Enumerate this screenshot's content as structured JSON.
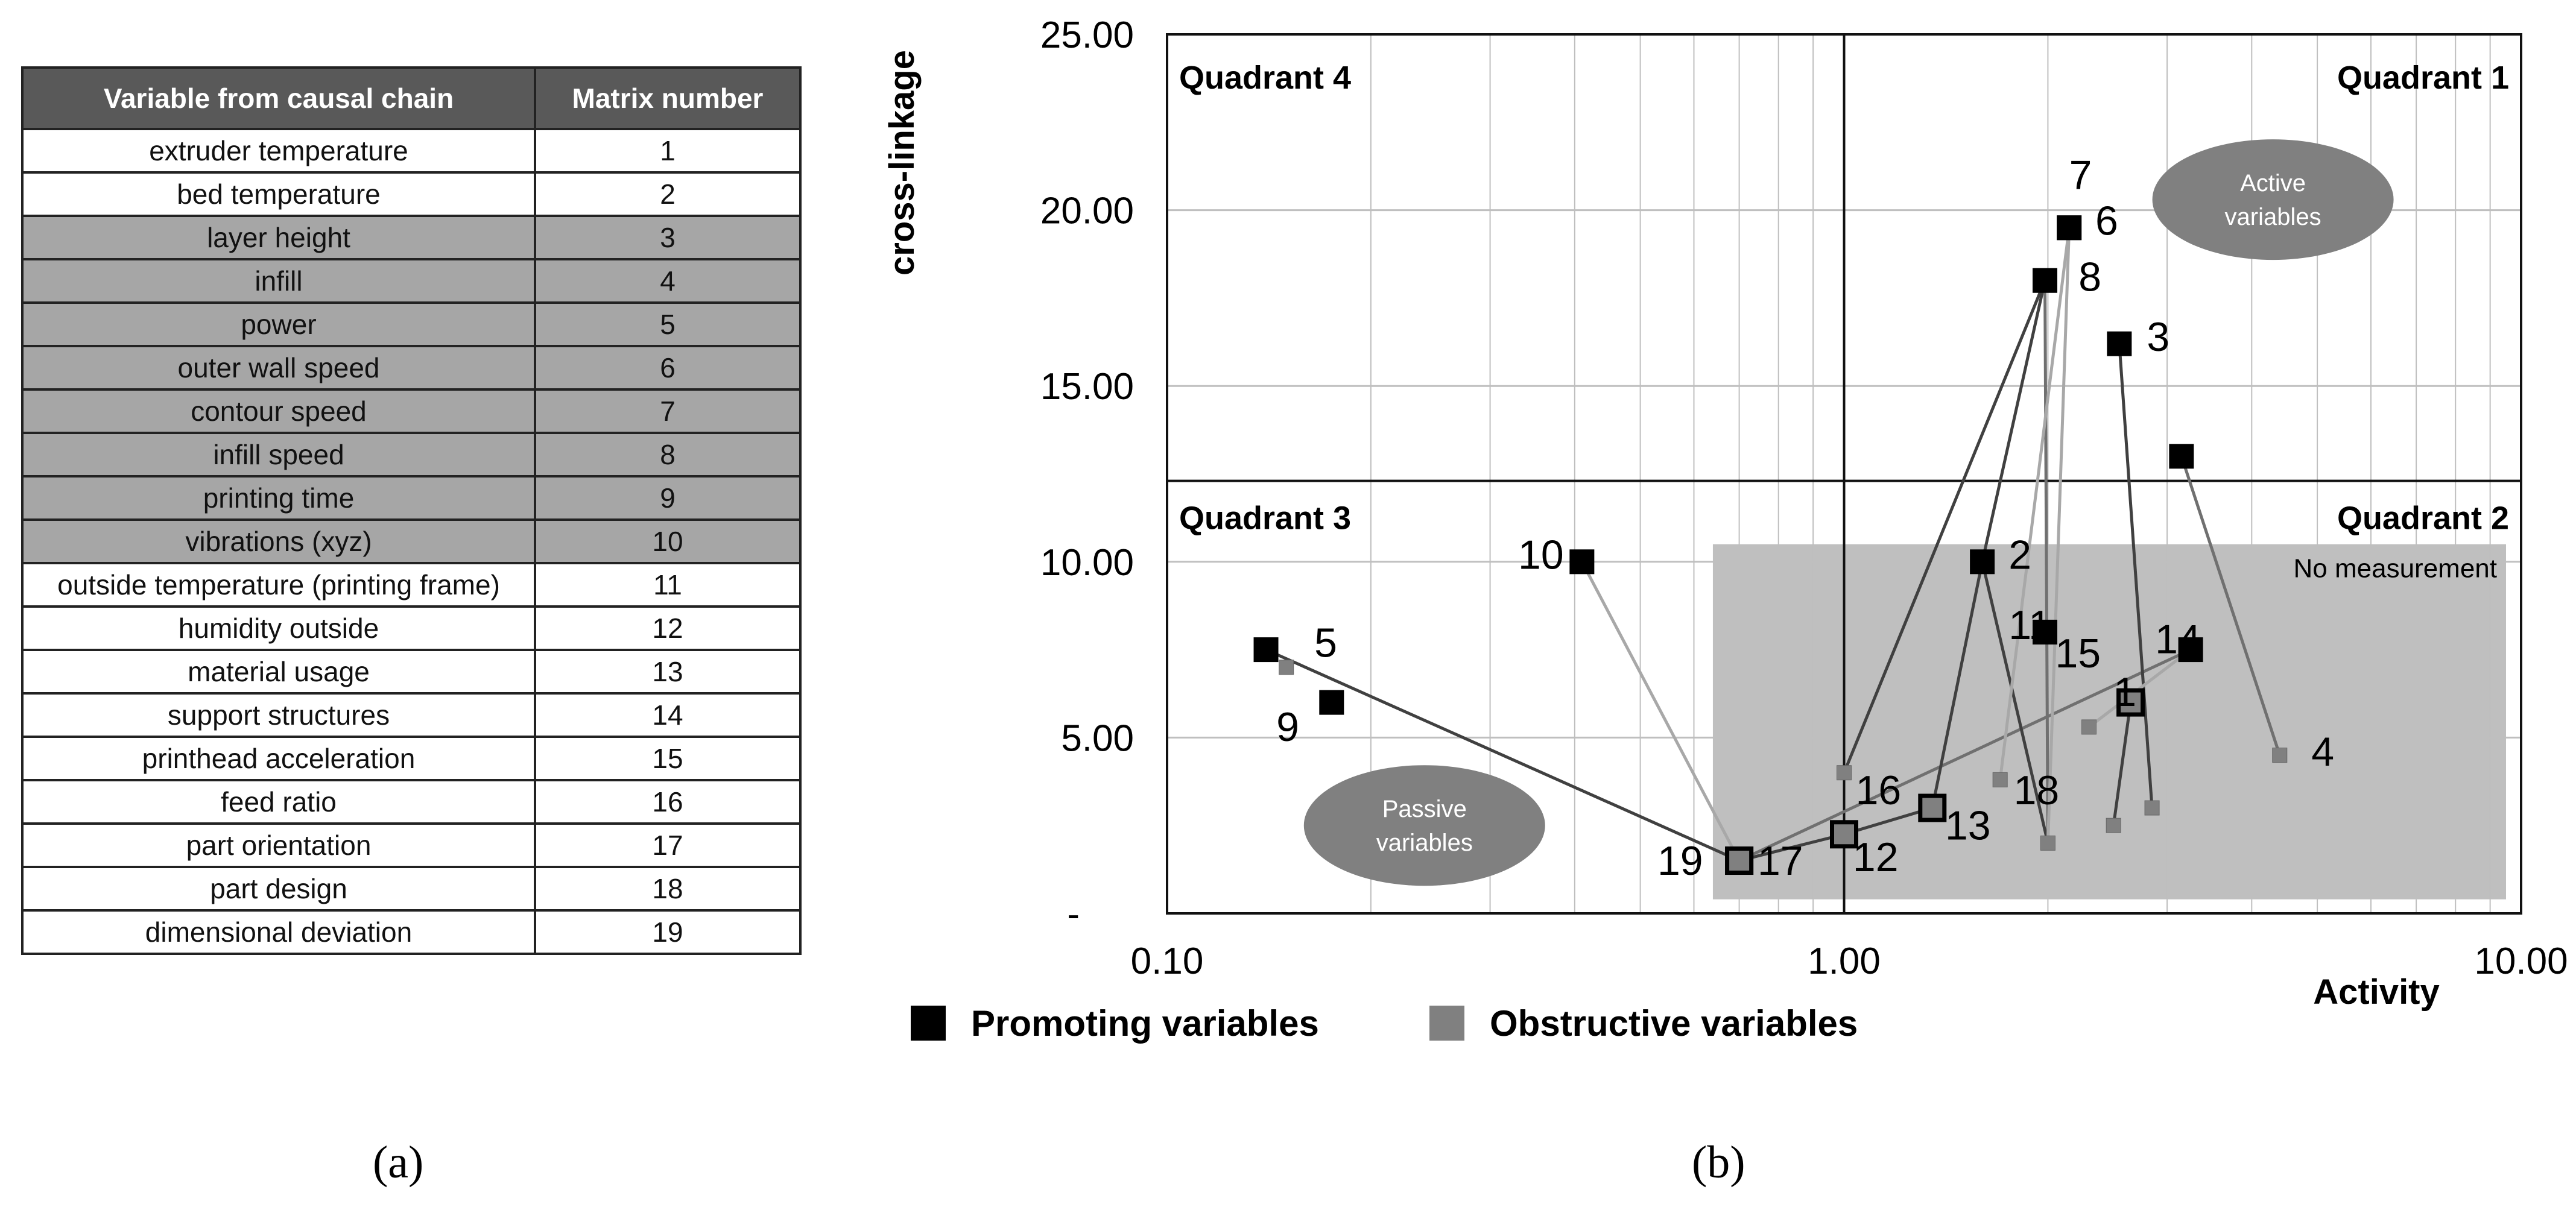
{
  "table": {
    "headers": [
      "Variable from causal chain",
      "Matrix number"
    ],
    "rows": [
      {
        "variable": "extruder temperature",
        "number": "1",
        "shaded": false
      },
      {
        "variable": "bed temperature",
        "number": "2",
        "shaded": false
      },
      {
        "variable": "layer height",
        "number": "3",
        "shaded": true
      },
      {
        "variable": "infill",
        "number": "4",
        "shaded": true
      },
      {
        "variable": "power",
        "number": "5",
        "shaded": true
      },
      {
        "variable": "outer wall speed",
        "number": "6",
        "shaded": true
      },
      {
        "variable": "contour speed",
        "number": "7",
        "shaded": true
      },
      {
        "variable": "infill speed",
        "number": "8",
        "shaded": true
      },
      {
        "variable": "printing time",
        "number": "9",
        "shaded": true
      },
      {
        "variable": "vibrations (xyz)",
        "number": "10",
        "shaded": true
      },
      {
        "variable": "outside temperature (printing frame)",
        "number": "11",
        "shaded": false
      },
      {
        "variable": "humidity outside",
        "number": "12",
        "shaded": false
      },
      {
        "variable": "material usage",
        "number": "13",
        "shaded": false
      },
      {
        "variable": "support structures",
        "number": "14",
        "shaded": false
      },
      {
        "variable": "printhead acceleration",
        "number": "15",
        "shaded": false
      },
      {
        "variable": "feed ratio",
        "number": "16",
        "shaded": false
      },
      {
        "variable": "part orientation",
        "number": "17",
        "shaded": false
      },
      {
        "variable": "part design",
        "number": "18",
        "shaded": false
      },
      {
        "variable": "dimensional deviation",
        "number": "19",
        "shaded": false
      }
    ]
  },
  "captions": {
    "a": "(a)",
    "b": "(b)"
  },
  "chart_data": {
    "type": "scatter",
    "xlabel": "Activity",
    "ylabel": "cross-linkage",
    "xscale": "log",
    "xlim": [
      0.1,
      10
    ],
    "ylim": [
      0,
      25
    ],
    "x_ticks": [
      {
        "value": 0.1,
        "label": "0.10"
      },
      {
        "value": 1,
        "label": "1.00"
      },
      {
        "value": 10,
        "label": "10.00"
      }
    ],
    "y_ticks": [
      {
        "value": 0,
        "label": "-"
      },
      {
        "value": 5,
        "label": "5.00"
      },
      {
        "value": 10,
        "label": "10.00"
      },
      {
        "value": 15,
        "label": "15.00"
      },
      {
        "value": 20,
        "label": "20.00"
      },
      {
        "value": 25,
        "label": "25.00"
      }
    ],
    "quadrant_split": {
      "x": 1.0,
      "y": 12.3
    },
    "quadrant_labels": [
      {
        "text": "Quadrant 4",
        "position": "top-left"
      },
      {
        "text": "Quadrant 1",
        "position": "top-right"
      },
      {
        "text": "Quadrant 3",
        "position": "bottom-left"
      },
      {
        "text": "Quadrant 2",
        "position": "bottom-right"
      }
    ],
    "region": {
      "label": "No measurement",
      "x_range": [
        0.64,
        9.5
      ],
      "y_range": [
        0.4,
        10.5
      ]
    },
    "ellipses": [
      {
        "label_lines": [
          "Active",
          "variables"
        ],
        "cx": 4.3,
        "cy": 20.3
      },
      {
        "label_lines": [
          "Passive",
          "variables"
        ],
        "cx": 0.24,
        "cy": 2.5
      }
    ],
    "promoting": [
      {
        "id": "1",
        "x": 2.65,
        "y": 6.0
      },
      {
        "id": "2",
        "x": 1.6,
        "y": 10.0
      },
      {
        "id": "3",
        "x": 2.55,
        "y": 16.2
      },
      {
        "id": "5",
        "x": 0.14,
        "y": 7.5
      },
      {
        "id": "6",
        "x": 2.15,
        "y": 19.5
      },
      {
        "id": "7",
        "x": 2.15,
        "y": 19.5
      },
      {
        "id": "8",
        "x": 1.98,
        "y": 18.0
      },
      {
        "id": "9",
        "x": 0.175,
        "y": 6.0
      },
      {
        "id": "10",
        "x": 0.41,
        "y": 10.0
      },
      {
        "id": "11",
        "x": 1.98,
        "y": 8.0
      },
      {
        "id": "12",
        "x": 1.0,
        "y": 2.25
      },
      {
        "id": "13",
        "x": 1.35,
        "y": 3.0
      },
      {
        "id": "14",
        "x": 3.25,
        "y": 7.5
      },
      {
        "id": "15",
        "x": 1.98,
        "y": 8.0
      },
      {
        "id": "17",
        "x": 0.7,
        "y": 1.5
      },
      {
        "id": "19",
        "x": 0.7,
        "y": 1.5
      },
      {
        "id": "4-target",
        "x": 3.15,
        "y": 13.0
      }
    ],
    "obstructive": [
      {
        "id": "4",
        "x": 4.4,
        "y": 4.5
      },
      {
        "id": "5",
        "x": 0.15,
        "y": 7.0
      },
      {
        "id": "16",
        "x": 1.0,
        "y": 4.0
      },
      {
        "id": "18",
        "x": 1.7,
        "y": 3.8
      },
      {
        "id": "7",
        "x": 2.0,
        "y": 2.0
      },
      {
        "id": "6",
        "x": 2.85,
        "y": 3.0
      },
      {
        "id": "1",
        "x": 2.5,
        "y": 2.5
      },
      {
        "id": "14",
        "x": 2.3,
        "y": 5.3
      }
    ],
    "point_labels": [
      {
        "text": "7",
        "x": 2.15,
        "y": 20.6
      },
      {
        "text": "6",
        "x": 2.35,
        "y": 19.3
      },
      {
        "text": "8",
        "x": 2.22,
        "y": 17.7
      },
      {
        "text": "3",
        "x": 2.8,
        "y": 16.0
      },
      {
        "text": "10",
        "x": 0.33,
        "y": 9.8
      },
      {
        "text": "2",
        "x": 1.75,
        "y": 9.8
      },
      {
        "text": "11",
        "x": 1.75,
        "y": 7.8
      },
      {
        "text": "15",
        "x": 2.05,
        "y": 7.0
      },
      {
        "text": "14",
        "x": 2.88,
        "y": 7.4
      },
      {
        "text": "1",
        "x": 2.5,
        "y": 5.9
      },
      {
        "text": "5",
        "x": 0.165,
        "y": 7.3
      },
      {
        "text": "9",
        "x": 0.145,
        "y": 4.9
      },
      {
        "text": "4",
        "x": 4.9,
        "y": 4.2
      },
      {
        "text": "16",
        "x": 1.04,
        "y": 3.1
      },
      {
        "text": "18",
        "x": 1.78,
        "y": 3.1
      },
      {
        "text": "13",
        "x": 1.41,
        "y": 2.1
      },
      {
        "text": "12",
        "x": 1.03,
        "y": 1.2
      },
      {
        "text": "17",
        "x": 0.745,
        "y": 1.1
      },
      {
        "text": "19",
        "x": 0.53,
        "y": 1.1
      }
    ],
    "connections": [
      {
        "from": [
          0.14,
          7.5
        ],
        "to": [
          0.7,
          1.5
        ],
        "tone": "dark"
      },
      {
        "from": [
          0.41,
          10.0
        ],
        "to": [
          0.7,
          1.5
        ],
        "tone": "light"
      },
      {
        "from": [
          0.7,
          1.5
        ],
        "to": [
          1.0,
          2.25
        ],
        "tone": "dark"
      },
      {
        "from": [
          1.0,
          2.25
        ],
        "to": [
          1.35,
          3.0
        ],
        "tone": "dark"
      },
      {
        "from": [
          0.7,
          1.5
        ],
        "to": [
          3.25,
          7.5
        ],
        "tone": "mid"
      },
      {
        "from": [
          1.0,
          4.0
        ],
        "to": [
          1.98,
          18.0
        ],
        "tone": "dark"
      },
      {
        "from": [
          1.35,
          3.0
        ],
        "to": [
          1.6,
          10.0
        ],
        "tone": "dark"
      },
      {
        "from": [
          1.6,
          10.0
        ],
        "to": [
          2.0,
          2.0
        ],
        "tone": "dark"
      },
      {
        "from": [
          1.6,
          10.0
        ],
        "to": [
          1.98,
          18.0
        ],
        "tone": "dark"
      },
      {
        "from": [
          1.98,
          18.0
        ],
        "to": [
          2.0,
          2.0
        ],
        "tone": "mid"
      },
      {
        "from": [
          2.15,
          19.5
        ],
        "to": [
          2.0,
          2.0
        ],
        "tone": "light"
      },
      {
        "from": [
          2.15,
          19.5
        ],
        "to": [
          1.7,
          3.8
        ],
        "tone": "light"
      },
      {
        "from": [
          2.55,
          16.2
        ],
        "to": [
          2.85,
          3.0
        ],
        "tone": "dark"
      },
      {
        "from": [
          2.65,
          6.0
        ],
        "to": [
          2.5,
          2.5
        ],
        "tone": "dark"
      },
      {
        "from": [
          3.15,
          13.0
        ],
        "to": [
          4.4,
          4.5
        ],
        "tone": "mid"
      },
      {
        "from": [
          2.3,
          5.3
        ],
        "to": [
          3.25,
          7.5
        ],
        "tone": "light"
      }
    ],
    "legend": {
      "position": "bottom-left",
      "items": [
        {
          "label": "Promoting variables",
          "color": "#000000"
        },
        {
          "label": "Obstructive variables",
          "color": "#808080"
        }
      ]
    },
    "colors": {
      "promoting": "#000000",
      "obstructive": "#808080",
      "region": "#bfbfbf",
      "ellipse": "#808080",
      "grid": "#bfbfbf"
    }
  }
}
